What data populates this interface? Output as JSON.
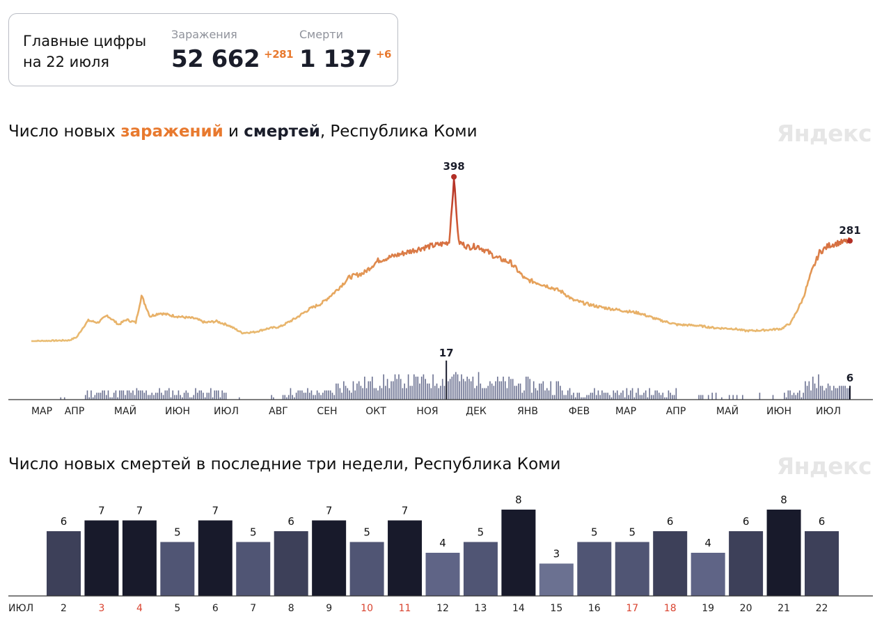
{
  "summary": {
    "title_line1": "Главные цифры",
    "title_line2": "на 22 июля",
    "infections_label": "Заражения",
    "infections_value": "52 662",
    "infections_delta": "+281",
    "deaths_label": "Смерти",
    "deaths_value": "1 137",
    "deaths_delta": "+6"
  },
  "chart1_title": {
    "part1": "Число новых ",
    "part2": "заражений",
    "part3": " и ",
    "part4": "смертей",
    "part5": ", Республика Коми"
  },
  "chart2_title": "Число новых смертей в последние три недели, Республика Коми",
  "watermark": "Яндекс",
  "colors": {
    "accent_orange": "#e8792e",
    "line_low": "#e9bd74",
    "line_high": "#b22f26",
    "bar_dark": "#181a2b",
    "bar_light": "#6b7191",
    "weekend_red": "#d9432f"
  },
  "chart_data": [
    {
      "type": "line",
      "x_labels": [
        "МАР",
        "АПР",
        "МАЙ",
        "ИЮН",
        "ИЮЛ",
        "АВГ",
        "СЕН",
        "ОКТ",
        "НОЯ",
        "ДЕК",
        "ЯНВ",
        "ФЕВ",
        "МАР",
        "АПР",
        "МАЙ",
        "ИЮН",
        "ИЮЛ"
      ],
      "series": [
        {
          "name": "заражения",
          "peak_label": "398",
          "last_label": "281",
          "anchors": [
            [
              0,
              0
            ],
            [
              40,
              2
            ],
            [
              48,
              10
            ],
            [
              55,
              35
            ],
            [
              60,
              50
            ],
            [
              70,
              45
            ],
            [
              80,
              62
            ],
            [
              92,
              40
            ],
            [
              100,
              52
            ],
            [
              110,
              45
            ],
            [
              116,
              110
            ],
            [
              125,
              60
            ],
            [
              135,
              68
            ],
            [
              148,
              62
            ],
            [
              160,
              58
            ],
            [
              172,
              55
            ],
            [
              183,
              45
            ],
            [
              195,
              48
            ],
            [
              208,
              38
            ],
            [
              222,
              20
            ],
            [
              235,
              22
            ],
            [
              248,
              30
            ],
            [
              262,
              35
            ],
            [
              278,
              55
            ],
            [
              293,
              78
            ],
            [
              306,
              92
            ],
            [
              320,
              120
            ],
            [
              335,
              155
            ],
            [
              350,
              165
            ],
            [
              365,
              195
            ],
            [
              380,
              205
            ],
            [
              395,
              215
            ],
            [
              410,
              225
            ],
            [
              420,
              230
            ],
            [
              432,
              235
            ],
            [
              440,
              240
            ],
            [
              445,
              392
            ],
            [
              450,
              240
            ],
            [
              460,
              228
            ],
            [
              470,
              230
            ],
            [
              478,
              220
            ],
            [
              490,
              202
            ],
            [
              505,
              190
            ],
            [
              520,
              150
            ],
            [
              535,
              140
            ],
            [
              550,
              128
            ],
            [
              560,
              118
            ],
            [
              570,
              100
            ],
            [
              585,
              90
            ],
            [
              600,
              82
            ],
            [
              620,
              75
            ],
            [
              640,
              68
            ],
            [
              660,
              52
            ],
            [
              680,
              40
            ],
            [
              700,
              38
            ],
            [
              720,
              32
            ],
            [
              740,
              30
            ],
            [
              752,
              25
            ],
            [
              768,
              26
            ],
            [
              780,
              28
            ],
            [
              790,
              30
            ],
            [
              800,
              45
            ],
            [
              812,
              100
            ],
            [
              822,
              170
            ],
            [
              830,
              215
            ],
            [
              840,
              232
            ],
            [
              850,
              238
            ],
            [
              862,
              243
            ]
          ]
        },
        {
          "name": "смерти",
          "peak_label": "17",
          "last_label": "6"
        }
      ]
    },
    {
      "type": "bar",
      "month_label": "ИЮЛ",
      "categories": [
        "2",
        "3",
        "4",
        "5",
        "6",
        "7",
        "8",
        "9",
        "10",
        "11",
        "12",
        "13",
        "14",
        "15",
        "16",
        "17",
        "18",
        "19",
        "20",
        "21",
        "22"
      ],
      "weekend": [
        false,
        true,
        true,
        false,
        false,
        false,
        false,
        false,
        true,
        true,
        false,
        false,
        false,
        false,
        false,
        true,
        true,
        false,
        false,
        false,
        false
      ],
      "values": [
        6,
        7,
        7,
        5,
        7,
        5,
        6,
        7,
        5,
        7,
        4,
        5,
        8,
        3,
        5,
        5,
        6,
        4,
        6,
        8,
        6
      ],
      "labels": [
        "6",
        "7",
        "7",
        "5",
        "7",
        "5",
        "6",
        "7",
        "5",
        "7",
        "4",
        "5",
        "8",
        "3",
        "5",
        "5",
        "6",
        "4",
        "6",
        "8",
        "6"
      ],
      "ylim": [
        0,
        8
      ]
    }
  ]
}
